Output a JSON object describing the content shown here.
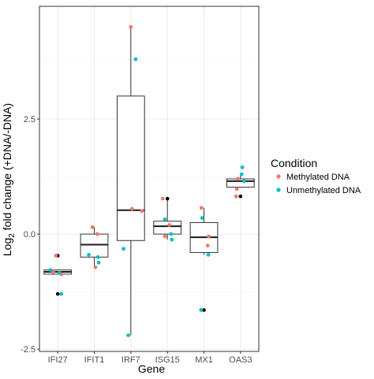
{
  "chart_data": {
    "type": "box",
    "xlabel": "Gene",
    "ylabel_main": "Log",
    "ylabel_sub": "2",
    "ylabel_rest": " fold change (+DNA/-DNA)",
    "ylim": [
      -2.55,
      4.95
    ],
    "yticks": [
      -2.5,
      0.0,
      2.5
    ],
    "ytick_labels": [
      "-2.5",
      "0.0",
      "2.5"
    ],
    "categories": [
      "IFI27",
      "IFIT1",
      "IRF7",
      "ISG15",
      "MX1",
      "OAS3"
    ],
    "legend": {
      "title": "Condition",
      "placement": "right",
      "items": [
        {
          "label": "Methylated DNA",
          "color": "#F8766D"
        },
        {
          "label": "Unmethylated DNA",
          "color": "#00BFC4"
        }
      ]
    },
    "boxes": [
      {
        "q1": -0.87,
        "median": -0.82,
        "q3": -0.78,
        "whisker_low": -0.87,
        "whisker_high": -0.78
      },
      {
        "q1": -0.5,
        "median": -0.23,
        "q3": 0.0,
        "whisker_low": -0.72,
        "whisker_high": 0.15
      },
      {
        "q1": -0.14,
        "median": 0.52,
        "q3": 3.0,
        "whisker_low": -2.2,
        "whisker_high": 4.5
      },
      {
        "q1": 0.0,
        "median": 0.17,
        "q3": 0.28,
        "whisker_low": -0.12,
        "whisker_high": 0.75
      },
      {
        "q1": -0.4,
        "median": -0.07,
        "q3": 0.25,
        "whisker_low": -0.45,
        "whisker_high": 0.57
      },
      {
        "q1": 1.02,
        "median": 1.15,
        "q3": 1.2,
        "whisker_low": 1.02,
        "whisker_high": 1.27
      }
    ],
    "outliers": [
      {
        "category": "IFI27",
        "y": -0.47
      },
      {
        "category": "IFI27",
        "y": -1.3
      },
      {
        "category": "ISG15",
        "y": 0.77
      },
      {
        "category": "MX1",
        "y": -1.65
      },
      {
        "category": "OAS3",
        "y": 0.82
      }
    ],
    "points": [
      {
        "category": "IFI27",
        "condition": "Methylated DNA",
        "y": -0.47,
        "jitter": -0.05
      },
      {
        "category": "IFI27",
        "condition": "Methylated DNA",
        "y": -0.82,
        "jitter": -0.12
      },
      {
        "category": "IFI27",
        "condition": "Methylated DNA",
        "y": -0.87,
        "jitter": 0.1
      },
      {
        "category": "IFI27",
        "condition": "Unmethylated DNA",
        "y": -0.78,
        "jitter": -0.2
      },
      {
        "category": "IFI27",
        "condition": "Unmethylated DNA",
        "y": -0.84,
        "jitter": 0.05
      },
      {
        "category": "IFI27",
        "condition": "Unmethylated DNA",
        "y": -1.3,
        "jitter": 0.1
      },
      {
        "category": "IFIT1",
        "condition": "Methylated DNA",
        "y": 0.15,
        "jitter": -0.05
      },
      {
        "category": "IFIT1",
        "condition": "Methylated DNA",
        "y": 0.0,
        "jitter": 0.08
      },
      {
        "category": "IFIT1",
        "condition": "Methylated DNA",
        "y": -0.72,
        "jitter": 0.03
      },
      {
        "category": "IFIT1",
        "condition": "Unmethylated DNA",
        "y": -0.45,
        "jitter": -0.15
      },
      {
        "category": "IFIT1",
        "condition": "Unmethylated DNA",
        "y": -0.5,
        "jitter": 0.1
      },
      {
        "category": "IFIT1",
        "condition": "Unmethylated DNA",
        "y": -0.62,
        "jitter": 0.12
      },
      {
        "category": "IRF7",
        "condition": "Methylated DNA",
        "y": 4.5,
        "jitter": 0.0
      },
      {
        "category": "IRF7",
        "condition": "Methylated DNA",
        "y": 0.55,
        "jitter": 0.03
      },
      {
        "category": "IRF7",
        "condition": "Methylated DNA",
        "y": 0.5,
        "jitter": 0.3
      },
      {
        "category": "IRF7",
        "condition": "Unmethylated DNA",
        "y": 3.8,
        "jitter": 0.13
      },
      {
        "category": "IRF7",
        "condition": "Unmethylated DNA",
        "y": -0.32,
        "jitter": -0.2
      },
      {
        "category": "IRF7",
        "condition": "Unmethylated DNA",
        "y": -2.2,
        "jitter": -0.07
      },
      {
        "category": "ISG15",
        "condition": "Methylated DNA",
        "y": 0.77,
        "jitter": -0.13
      },
      {
        "category": "ISG15",
        "condition": "Methylated DNA",
        "y": 0.2,
        "jitter": 0.05
      },
      {
        "category": "ISG15",
        "condition": "Methylated DNA",
        "y": -0.05,
        "jitter": -0.07
      },
      {
        "category": "ISG15",
        "condition": "Unmethylated DNA",
        "y": 0.32,
        "jitter": -0.07
      },
      {
        "category": "ISG15",
        "condition": "Unmethylated DNA",
        "y": 0.0,
        "jitter": 0.1
      },
      {
        "category": "ISG15",
        "condition": "Unmethylated DNA",
        "y": -0.12,
        "jitter": 0.12
      },
      {
        "category": "MX1",
        "condition": "Methylated DNA",
        "y": 0.57,
        "jitter": -0.07
      },
      {
        "category": "MX1",
        "condition": "Methylated DNA",
        "y": -0.05,
        "jitter": 0.13
      },
      {
        "category": "MX1",
        "condition": "Methylated DNA",
        "y": -0.25,
        "jitter": 0.1
      },
      {
        "category": "MX1",
        "condition": "Unmethylated DNA",
        "y": 0.35,
        "jitter": -0.05
      },
      {
        "category": "MX1",
        "condition": "Unmethylated DNA",
        "y": -0.45,
        "jitter": 0.12
      },
      {
        "category": "MX1",
        "condition": "Unmethylated DNA",
        "y": -1.65,
        "jitter": -0.08
      },
      {
        "category": "OAS3",
        "condition": "Methylated DNA",
        "y": 1.2,
        "jitter": -0.07
      },
      {
        "category": "OAS3",
        "condition": "Methylated DNA",
        "y": 0.98,
        "jitter": -0.1
      },
      {
        "category": "OAS3",
        "condition": "Methylated DNA",
        "y": 0.82,
        "jitter": -0.12
      },
      {
        "category": "OAS3",
        "condition": "Unmethylated DNA",
        "y": 1.45,
        "jitter": 0.05
      },
      {
        "category": "OAS3",
        "condition": "Unmethylated DNA",
        "y": 1.3,
        "jitter": 0.03
      },
      {
        "category": "OAS3",
        "condition": "Unmethylated DNA",
        "y": 1.15,
        "jitter": 0.1
      }
    ]
  }
}
